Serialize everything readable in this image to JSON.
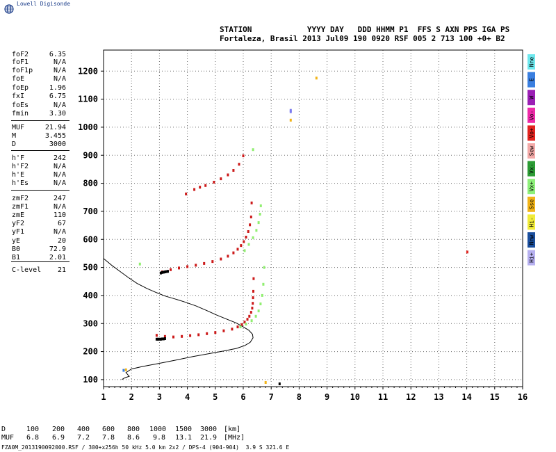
{
  "brand": "Lowell Digisonde",
  "header": {
    "line1": "STATION            YYYY DAY   DDD HHMM P1  FFS S AXN PPS IGA PS",
    "line2": "Fortaleza, Brasil 2013 Jul09 190 0920 RSF 005 2 713 100 +0+ B2"
  },
  "params": [
    {
      "label": "foF2",
      "value": "6.35"
    },
    {
      "label": "foF1",
      "value": "N/A"
    },
    {
      "label": "foF1p",
      "value": "N/A"
    },
    {
      "label": "foE",
      "value": "N/A"
    },
    {
      "label": "foEp",
      "value": "1.96"
    },
    {
      "label": "fxI",
      "value": "6.75"
    },
    {
      "label": "foEs",
      "value": "N/A"
    },
    {
      "label": "fmin",
      "value": "3.30"
    },
    {
      "label": "MUF",
      "value": "21.94"
    },
    {
      "label": "M",
      "value": "3.455"
    },
    {
      "label": "D",
      "value": "3000"
    },
    {
      "label": "h'F",
      "value": "242"
    },
    {
      "label": "h'F2",
      "value": "N/A"
    },
    {
      "label": "h'E",
      "value": "N/A"
    },
    {
      "label": "h'Es",
      "value": "N/A"
    },
    {
      "label": "zmF2",
      "value": "247"
    },
    {
      "label": "zmF1",
      "value": "N/A"
    },
    {
      "label": "zmE",
      "value": "110"
    },
    {
      "label": "yF2",
      "value": "67"
    },
    {
      "label": "yF1",
      "value": "N/A"
    },
    {
      "label": "yE",
      "value": "20"
    },
    {
      "label": "B0",
      "value": "72.9"
    },
    {
      "label": "B1",
      "value": "2.01"
    },
    {
      "label": "C-level",
      "value": "21"
    }
  ],
  "legend": [
    {
      "label": "Nne",
      "color": "#6ee8ee"
    },
    {
      "label": "E",
      "color": "#3a7fe0"
    },
    {
      "label": "W",
      "color": "#9b1fb5"
    },
    {
      "label": "Vo-",
      "color": "#ee2aa8"
    },
    {
      "label": "Vo+",
      "color": "#e3241f"
    },
    {
      "label": "Sew",
      "color": "#f3aaa8"
    },
    {
      "label": "Vx-",
      "color": "#2c9c35"
    },
    {
      "label": "Vx+",
      "color": "#8ef07a"
    },
    {
      "label": "Sse",
      "color": "#f2b418"
    },
    {
      "label": "Hi-",
      "color": "#f1ec3a"
    },
    {
      "label": "Nnw",
      "color": "#1b4f9e"
    },
    {
      "label": "Hi+",
      "color": "#b7b1f0"
    }
  ],
  "footer": {
    "d_label": "D",
    "d_values": [
      "100",
      "200",
      "400",
      "600",
      "800",
      "1000",
      "1500",
      "3000"
    ],
    "d_unit": "[km]",
    "muf_label": "MUF",
    "muf_values": [
      "6.8",
      "6.9",
      "7.2",
      "7.8",
      "8.6",
      "9.8",
      "13.1",
      "21.9"
    ],
    "muf_unit": "[MHz]",
    "file_line": "FZA0M_2013190092000.RSF / 300+x256h 50 kHz 5.0 km 2x2 / DPS-4 (904-904)  3.9 S 321.6 E"
  },
  "chart_data": {
    "type": "scatter",
    "title": "",
    "xlabel": "",
    "ylabel": "",
    "xlim": [
      1,
      16
    ],
    "ylim": [
      75,
      1275
    ],
    "x_ticks": [
      "1",
      "2",
      "3",
      "4",
      "5",
      "6",
      "7",
      "8",
      "9",
      "10",
      "11",
      "12",
      "13",
      "14",
      "15",
      "16"
    ],
    "y_ticks": [
      "100",
      "200",
      "300",
      "400",
      "500",
      "600",
      "700",
      "800",
      "900",
      "1000",
      "1100",
      "1200"
    ],
    "grid": true,
    "series": [
      {
        "color": "#cc1a1a",
        "x": [
          2.9,
          3.2,
          3.5,
          3.8,
          4.1,
          4.4,
          4.7,
          5.0,
          5.3,
          5.6,
          5.8,
          5.95,
          6.05,
          6.15,
          6.22,
          6.28,
          6.32,
          6.34,
          6.35,
          6.36,
          6.37
        ],
        "y": [
          258,
          254,
          252,
          254,
          257,
          260,
          264,
          268,
          274,
          280,
          288,
          296,
          305,
          315,
          326,
          340,
          355,
          372,
          392,
          415,
          460
        ]
      },
      {
        "color": "#90ee70",
        "x": [
          5.9,
          6.1,
          6.3,
          6.45,
          6.55,
          6.62,
          6.68,
          6.72,
          6.75
        ],
        "y": [
          288,
          298,
          310,
          326,
          345,
          370,
          400,
          440,
          500
        ]
      },
      {
        "color": "#cc1a1a",
        "x": [
          3.1,
          3.4,
          3.7,
          4.0,
          4.3,
          4.6,
          4.9,
          5.2,
          5.45,
          5.65,
          5.8,
          5.92,
          6.02,
          6.1,
          6.18,
          6.24,
          6.28,
          6.3
        ],
        "y": [
          484,
          492,
          498,
          503,
          508,
          514,
          521,
          530,
          540,
          552,
          565,
          578,
          592,
          608,
          628,
          652,
          680,
          730
        ]
      },
      {
        "color": "#90ee70",
        "x": [
          6.05,
          6.2,
          6.35,
          6.47,
          6.55,
          6.6,
          6.63
        ],
        "y": [
          560,
          582,
          606,
          632,
          660,
          690,
          720
        ]
      },
      {
        "color": "#cc1a1a",
        "x": [
          3.95,
          4.25,
          4.45,
          4.65,
          4.95,
          5.2,
          5.45,
          5.65,
          5.85,
          6.0
        ],
        "y": [
          762,
          778,
          786,
          792,
          804,
          816,
          830,
          846,
          868,
          898
        ]
      },
      {
        "color": "#000000",
        "x": [
          2.9,
          2.95,
          3.0,
          3.05,
          3.1,
          3.15,
          3.2
        ],
        "y": [
          244,
          244,
          244,
          244,
          245,
          245,
          246
        ]
      },
      {
        "color": "#000000",
        "x": [
          3.05,
          3.1,
          3.15,
          3.2,
          3.25,
          3.3
        ],
        "y": [
          480,
          482,
          483,
          484,
          485,
          486
        ]
      },
      {
        "color": "#7d7df0",
        "x": [
          7.7,
          7.7
        ],
        "y": [
          1060,
          1055
        ]
      },
      {
        "color": "#f2b418",
        "x": [
          7.7,
          8.62,
          6.8,
          1.8
        ],
        "y": [
          1025,
          1175,
          90,
          135
        ]
      },
      {
        "color": "#e3241f",
        "x": [
          14.02
        ],
        "y": [
          555
        ]
      },
      {
        "color": "#3a7fe0",
        "x": [
          1.72
        ],
        "y": [
          133
        ]
      },
      {
        "color": "#000000",
        "x": [
          7.3
        ],
        "y": [
          85
        ]
      },
      {
        "color": "#90ee70",
        "x": [
          2.3,
          6.35
        ],
        "y": [
          512,
          920
        ]
      }
    ],
    "profile": {
      "color": "#000000",
      "freq": [
        1.0,
        1.3,
        1.6,
        1.9,
        2.2,
        2.55,
        2.9,
        3.2,
        3.55,
        3.9,
        4.3,
        4.7,
        5.05,
        5.4,
        5.75,
        6.0,
        6.2,
        6.33,
        6.35,
        6.25,
        6.05,
        5.75,
        5.3,
        4.8,
        4.2,
        3.6,
        2.95,
        2.4,
        2.0,
        1.8,
        1.92,
        1.75,
        1.65
      ],
      "height": [
        532,
        507,
        485,
        463,
        443,
        425,
        410,
        398,
        388,
        377,
        363,
        346,
        330,
        316,
        302,
        288,
        276,
        262,
        249,
        233,
        221,
        211,
        202,
        193,
        182,
        170,
        157,
        147,
        138,
        125,
        112,
        106,
        100
      ]
    }
  }
}
